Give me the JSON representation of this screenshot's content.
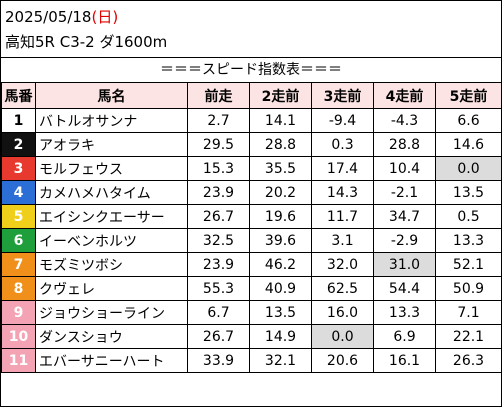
{
  "header": {
    "date": "2025/05/18",
    "weekday_open": "(",
    "weekday": "日",
    "weekday_close": ")",
    "race": "高知5R C3-2 ダ1600m"
  },
  "title": "＝＝＝スピード指数表＝＝＝",
  "columns": [
    "馬番",
    "馬名",
    "前走",
    "2走前",
    "3走前",
    "4走前",
    "5走前"
  ],
  "rows": [
    {
      "no": "1",
      "name": "バトルオサンナ",
      "v": [
        "2.7",
        "14.1",
        "-9.4",
        "-4.3",
        "6.6"
      ],
      "bg": "#ffffff",
      "fg": "#000000",
      "hl": []
    },
    {
      "no": "2",
      "name": "アオラキ",
      "v": [
        "29.5",
        "28.8",
        "0.3",
        "28.8",
        "14.6"
      ],
      "bg": "#111111",
      "fg": "#ffffff",
      "hl": []
    },
    {
      "no": "3",
      "name": "モルフェウス",
      "v": [
        "15.3",
        "35.5",
        "17.4",
        "10.4",
        "0.0"
      ],
      "bg": "#e8392f",
      "fg": "#ffffff",
      "hl": [
        4
      ]
    },
    {
      "no": "4",
      "name": "カメハメハタイム",
      "v": [
        "23.9",
        "20.2",
        "14.3",
        "-2.1",
        "13.5"
      ],
      "bg": "#2b6fd6",
      "fg": "#ffffff",
      "hl": []
    },
    {
      "no": "5",
      "name": "エイシンクエーサー",
      "v": [
        "26.7",
        "19.6",
        "11.7",
        "34.7",
        "0.5"
      ],
      "bg": "#f0cf1a",
      "fg": "#ffffff",
      "hl": []
    },
    {
      "no": "6",
      "name": "イーベンホルツ",
      "v": [
        "32.5",
        "39.6",
        "3.1",
        "-2.9",
        "13.3"
      ],
      "bg": "#1f9f3c",
      "fg": "#ffffff",
      "hl": []
    },
    {
      "no": "7",
      "name": "モズミツボシ",
      "v": [
        "23.9",
        "46.2",
        "32.0",
        "31.0",
        "52.1"
      ],
      "bg": "#f0901a",
      "fg": "#ffffff",
      "hl": [
        3
      ]
    },
    {
      "no": "8",
      "name": "クヴェレ",
      "v": [
        "55.3",
        "40.9",
        "62.5",
        "54.4",
        "50.9"
      ],
      "bg": "#f0901a",
      "fg": "#ffffff",
      "hl": []
    },
    {
      "no": "9",
      "name": "ジョウショーライン",
      "v": [
        "6.7",
        "13.5",
        "16.0",
        "13.3",
        "7.1"
      ],
      "bg": "#f4a3b5",
      "fg": "#ffffff",
      "hl": []
    },
    {
      "no": "10",
      "name": "ダンスショウ",
      "v": [
        "26.7",
        "14.9",
        "0.0",
        "6.9",
        "22.1"
      ],
      "bg": "#f4a3b5",
      "fg": "#ffffff",
      "hl": [
        2
      ]
    },
    {
      "no": "11",
      "name": "エバーサニーハート",
      "v": [
        "33.9",
        "32.1",
        "20.6",
        "16.1",
        "26.3"
      ],
      "bg": "#f4a3b5",
      "fg": "#ffffff",
      "hl": []
    }
  ]
}
